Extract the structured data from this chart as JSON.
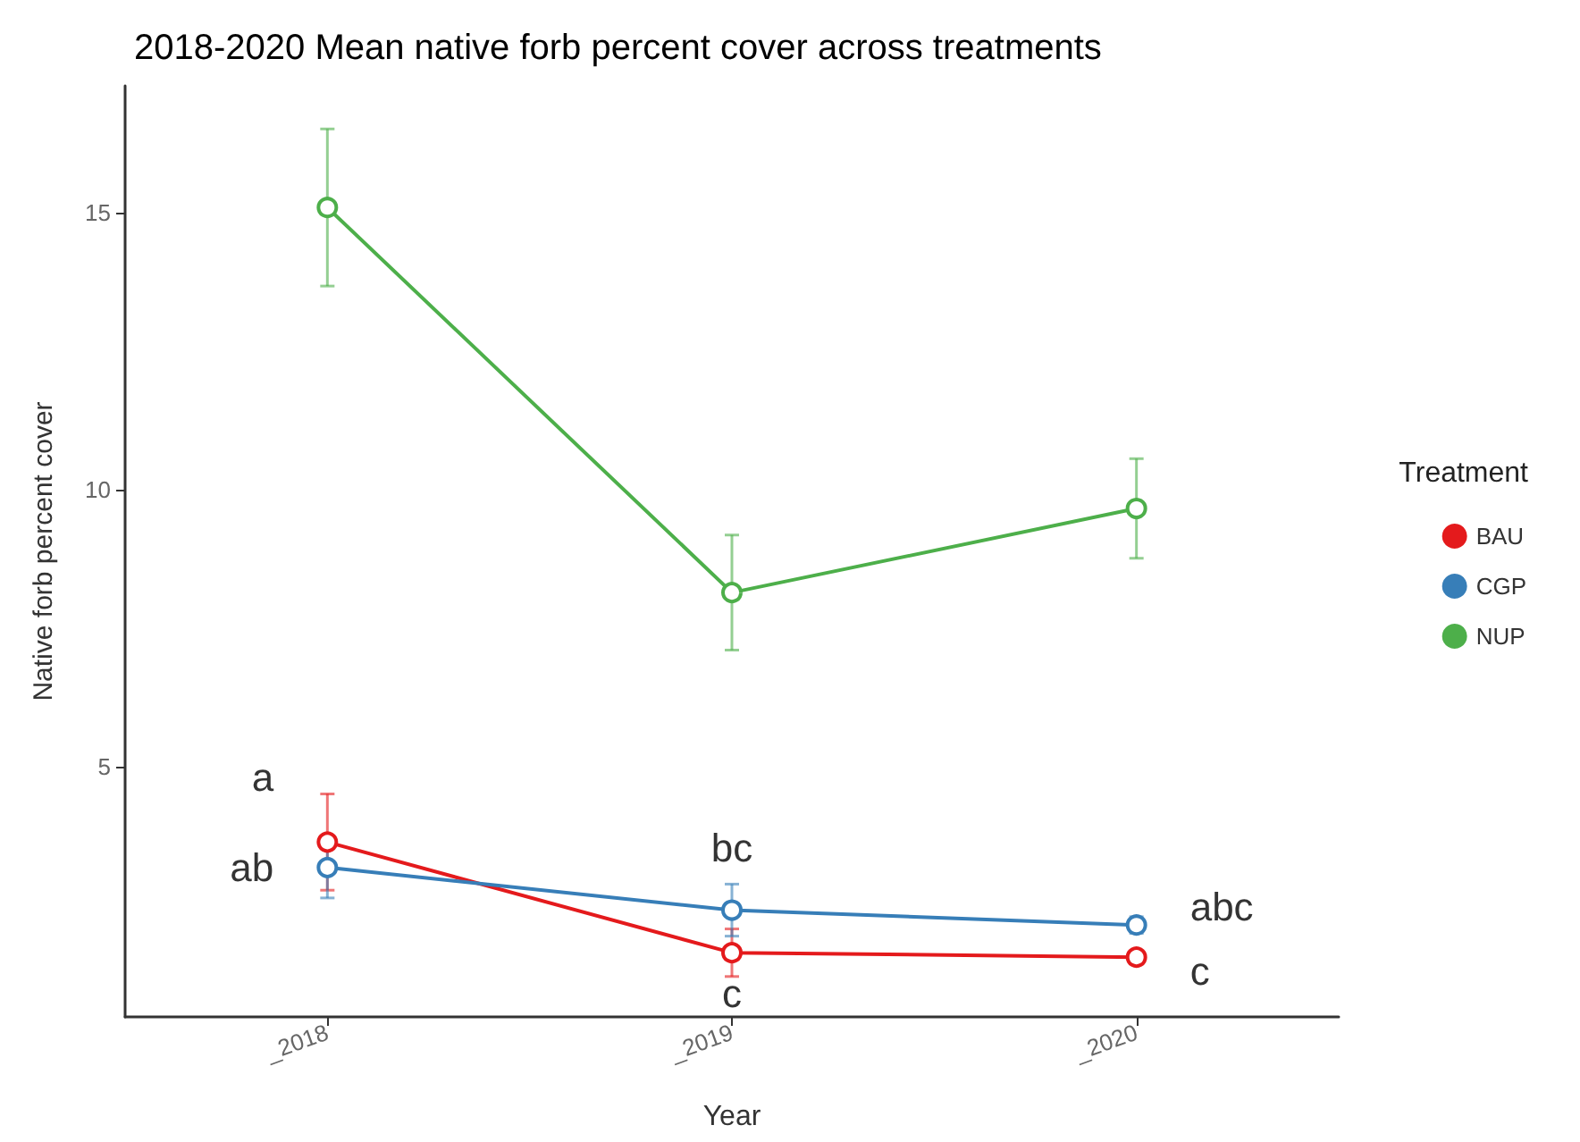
{
  "chart_data": {
    "type": "line",
    "title": "2018-2020 Mean native forb percent cover across treatments",
    "xlabel": "Year",
    "ylabel": "Native forb percent cover",
    "legend_title": "Treatment",
    "categories": [
      "_2018",
      "_2019",
      "_2020"
    ],
    "series": [
      {
        "name": "BAU",
        "color": "#e41a1c",
        "values": [
          3.63,
          1.63,
          1.55
        ],
        "errors": [
          0.87,
          0.43,
          0.1
        ]
      },
      {
        "name": "CGP",
        "color": "#377eb8",
        "values": [
          3.17,
          2.4,
          2.13
        ],
        "errors": [
          0.55,
          0.47,
          0.15
        ]
      },
      {
        "name": "NUP",
        "color": "#4daf4a",
        "values": [
          15.1,
          8.14,
          9.66
        ],
        "errors": [
          1.42,
          1.04,
          0.9
        ]
      }
    ],
    "ylim": [
      0.47,
      17.3
    ],
    "yticks": [
      5,
      10,
      15
    ],
    "grid": false,
    "legend": "right",
    "marker": "circle",
    "line_style": "solid",
    "annotations": [
      {
        "text": "a",
        "x": "_2018",
        "y": 3.63
      },
      {
        "text": "ab",
        "x": "_2018",
        "y": 3.17
      },
      {
        "text": "bc",
        "x": "_2019",
        "y": 2.4
      },
      {
        "text": "c",
        "x": "_2019",
        "y": 1.63
      },
      {
        "text": "abc",
        "x": "_2020",
        "y": 2.13
      },
      {
        "text": "c",
        "x": "_2020",
        "y": 1.55
      }
    ]
  }
}
